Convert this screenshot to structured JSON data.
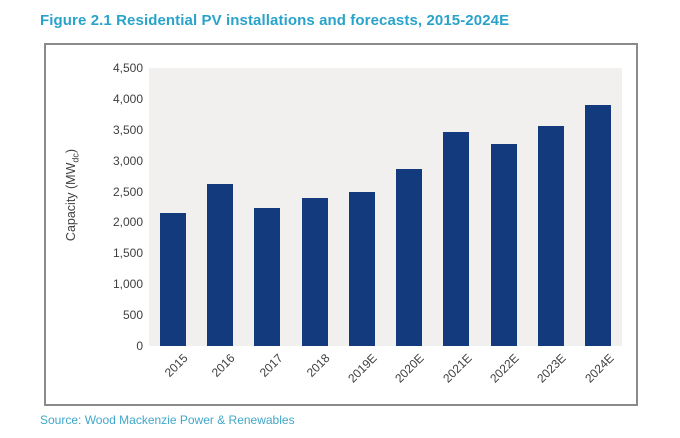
{
  "title": "Figure 2.1 Residential PV installations and forecasts, 2015-2024E",
  "source": "Source: Wood Mackenzie Power & Renewables",
  "colors": {
    "title": "#2aa3ca",
    "source": "#41a7ca",
    "bar": "#123a7c",
    "plot_background": "#f1f0ee",
    "frame_border": "#8a8a8a",
    "axis_text": "#3f3f3f"
  },
  "chart_data": {
    "type": "bar",
    "title": "Figure 2.1 Residential PV installations and forecasts, 2015-2024E",
    "categories": [
      "2015",
      "2016",
      "2017",
      "2018",
      "2019E",
      "2020E",
      "2021E",
      "2022E",
      "2023E",
      "2024E"
    ],
    "values": [
      2150,
      2620,
      2230,
      2400,
      2500,
      2870,
      3460,
      3270,
      3560,
      3900
    ],
    "xlabel": "",
    "ylabel": "Capacity (MW_dc)",
    "ylabel_parts": {
      "main": "Capacity (MW",
      "sub": "dc",
      "end": ")"
    },
    "ylim": [
      0,
      4500
    ],
    "ytick_step": 500,
    "yticks": [
      "0",
      "500",
      "1,000",
      "1,500",
      "2,000",
      "2,500",
      "3,000",
      "3,500",
      "4,000",
      "4,500"
    ],
    "grid": false,
    "legend": false,
    "bar_color": "#123a7c",
    "source": "Source: Wood Mackenzie Power & Renewables"
  }
}
